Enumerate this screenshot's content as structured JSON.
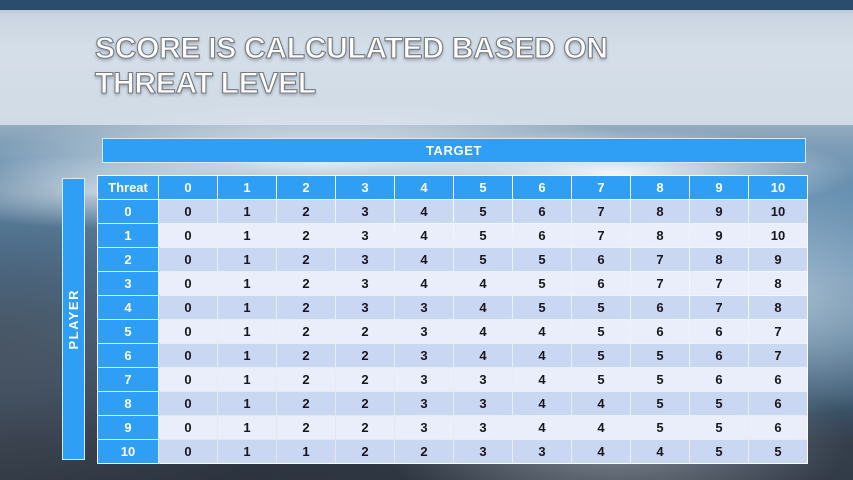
{
  "slide": {
    "title_line1": "SCORE IS CALCULATED BASED ON",
    "title_line2": "THREAT LEVEL"
  },
  "matrix": {
    "target_label": "TARGET",
    "player_label": "PLAYER",
    "corner_label": "Threat",
    "column_headers": [
      "0",
      "1",
      "2",
      "3",
      "4",
      "5",
      "6",
      "7",
      "8",
      "9",
      "10"
    ],
    "rows": [
      {
        "threat": "0",
        "values": [
          0,
          1,
          2,
          3,
          4,
          5,
          6,
          7,
          8,
          9,
          10
        ]
      },
      {
        "threat": "1",
        "values": [
          0,
          1,
          2,
          3,
          4,
          5,
          6,
          7,
          8,
          9,
          10
        ]
      },
      {
        "threat": "2",
        "values": [
          0,
          1,
          2,
          3,
          4,
          5,
          5,
          6,
          7,
          8,
          9
        ]
      },
      {
        "threat": "3",
        "values": [
          0,
          1,
          2,
          3,
          4,
          4,
          5,
          6,
          7,
          7,
          8
        ]
      },
      {
        "threat": "4",
        "values": [
          0,
          1,
          2,
          3,
          3,
          4,
          5,
          5,
          6,
          7,
          8
        ]
      },
      {
        "threat": "5",
        "values": [
          0,
          1,
          2,
          2,
          3,
          4,
          4,
          5,
          6,
          6,
          7
        ]
      },
      {
        "threat": "6",
        "values": [
          0,
          1,
          2,
          2,
          3,
          4,
          4,
          5,
          5,
          6,
          7
        ]
      },
      {
        "threat": "7",
        "values": [
          0,
          1,
          2,
          2,
          3,
          3,
          4,
          5,
          5,
          6,
          6
        ]
      },
      {
        "threat": "8",
        "values": [
          0,
          1,
          2,
          2,
          3,
          3,
          4,
          4,
          5,
          5,
          6
        ]
      },
      {
        "threat": "9",
        "values": [
          0,
          1,
          2,
          2,
          3,
          3,
          4,
          4,
          5,
          5,
          6
        ]
      },
      {
        "threat": "10",
        "values": [
          0,
          1,
          1,
          2,
          2,
          3,
          3,
          4,
          4,
          5,
          5
        ]
      }
    ]
  },
  "colors": {
    "accent_blue": "#2f9ff5",
    "bar_border": "#d6e9fb",
    "row_even": "#c9d7f2",
    "row_odd": "#e9eefa",
    "cell_text": "#17171f",
    "header_text": "#ffffff",
    "title_text": "#ffffff",
    "top_strip": "#2b4c6d"
  }
}
